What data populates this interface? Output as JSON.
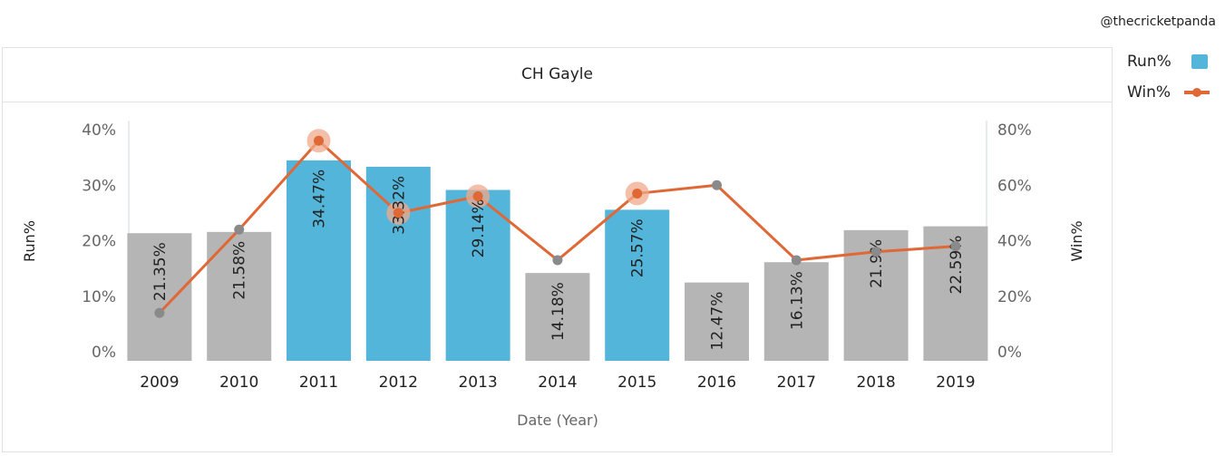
{
  "watermark": "@thecricketpanda",
  "chart_data": {
    "type": "bar",
    "title": "CH Gayle",
    "xlabel": "Date (Year)",
    "ylabel": "Run%",
    "y2label": "Win%",
    "categories": [
      "2009",
      "2010",
      "2011",
      "2012",
      "2013",
      "2014",
      "2015",
      "2016",
      "2017",
      "2018",
      "2019"
    ],
    "ylim": [
      0,
      40
    ],
    "y2lim": [
      0,
      80
    ],
    "yticks": [
      "0%",
      "10%",
      "20%",
      "30%",
      "40%"
    ],
    "y2ticks": [
      "0%",
      "20%",
      "40%",
      "60%",
      "80%"
    ],
    "series": [
      {
        "name": "Run%",
        "type": "bar",
        "axis": "left",
        "values": [
          21.35,
          21.58,
          34.47,
          33.32,
          29.14,
          14.18,
          25.57,
          12.47,
          16.13,
          21.9,
          22.59
        ],
        "labels": [
          "21.35%",
          "21.58%",
          "34.47%",
          "33.32%",
          "29.14%",
          "14.18%",
          "25.57%",
          "12.47%",
          "16.13%",
          "21.9%",
          "22.59%"
        ],
        "highlighted": [
          false,
          false,
          true,
          true,
          true,
          false,
          true,
          false,
          false,
          false,
          false
        ]
      },
      {
        "name": "Win%",
        "type": "line",
        "axis": "right",
        "values": [
          14,
          44,
          76,
          50,
          56,
          33,
          57,
          60,
          33,
          36,
          38
        ],
        "highlighted": [
          false,
          false,
          true,
          true,
          true,
          false,
          true,
          false,
          false,
          false,
          false
        ]
      }
    ],
    "colors": {
      "bar_highlight": "#53b5da",
      "bar_default": "#b5b5b5",
      "line": "#e06736",
      "marker_highlight": "#e06736",
      "marker_default": "#8a8a8a",
      "halo": "#f0a98c",
      "axis": "#cfd8dc"
    },
    "grid": false,
    "legend_position": "top-right"
  }
}
